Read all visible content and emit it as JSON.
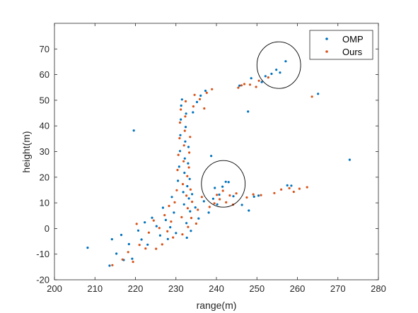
{
  "chart_data": {
    "type": "scatter",
    "xlabel": "range(m)",
    "ylabel": "height(m)",
    "xlim": [
      200,
      280
    ],
    "ylim": [
      -20,
      80
    ],
    "xticks": [
      "200",
      "210",
      "220",
      "230",
      "240",
      "250",
      "260",
      "270",
      "280"
    ],
    "yticks": [
      "-20",
      "-10",
      "0",
      "10",
      "20",
      "30",
      "40",
      "50",
      "60",
      "70"
    ],
    "grid": false,
    "legend_position": "top-right",
    "series": [
      {
        "name": "OMP",
        "color": "#0072BD",
        "points": [
          [
            208.2,
            -7.5
          ],
          [
            213.6,
            -14.5
          ],
          [
            214.2,
            -4.2
          ],
          [
            215.3,
            -9.8
          ],
          [
            216.5,
            -2.5
          ],
          [
            217.1,
            -12.3
          ],
          [
            218.4,
            -6.1
          ],
          [
            219.2,
            -11.8
          ],
          [
            219.6,
            38.2
          ],
          [
            220.7,
            -0.8
          ],
          [
            221.5,
            -4.3
          ],
          [
            222.3,
            2.4
          ],
          [
            223.0,
            -6.3
          ],
          [
            224.1,
            4.2
          ],
          [
            225.2,
            0.9
          ],
          [
            226.1,
            -2.7
          ],
          [
            226.8,
            8.1
          ],
          [
            227.5,
            3.3
          ],
          [
            228.0,
            -4.1
          ],
          [
            228.6,
            0.5
          ],
          [
            229.0,
            12.3
          ],
          [
            229.5,
            6.2
          ],
          [
            230.0,
            -1.8
          ],
          [
            230.5,
            18.6
          ],
          [
            230.8,
            24.1
          ],
          [
            231.0,
            30.2
          ],
          [
            231.1,
            36.4
          ],
          [
            231.2,
            42.5
          ],
          [
            231.3,
            47.9
          ],
          [
            231.5,
            50.3
          ],
          [
            231.8,
            14.2
          ],
          [
            232.0,
            9.4
          ],
          [
            232.1,
            21.7
          ],
          [
            232.2,
            27.3
          ],
          [
            232.3,
            33.9
          ],
          [
            232.4,
            39.6
          ],
          [
            232.5,
            44.8
          ],
          [
            232.6,
            2.1
          ],
          [
            232.7,
            -3.6
          ],
          [
            232.8,
            16.5
          ],
          [
            233.0,
            25.4
          ],
          [
            233.1,
            31.8
          ],
          [
            233.2,
            11.7
          ],
          [
            233.4,
            19.3
          ],
          [
            233.5,
            6.7
          ],
          [
            233.7,
            -0.9
          ],
          [
            234.0,
            13.4
          ],
          [
            234.2,
            45.3
          ],
          [
            234.8,
            8.2
          ],
          [
            235.2,
            49.3
          ],
          [
            235.6,
            3.9
          ],
          [
            236.1,
            51.8
          ],
          [
            236.9,
            10.6
          ],
          [
            237.3,
            53.7
          ],
          [
            238.1,
            6.2
          ],
          [
            238.7,
            28.3
          ],
          [
            239.2,
            11.6
          ],
          [
            239.6,
            15.8
          ],
          [
            240.2,
            9.4
          ],
          [
            240.7,
            13.2
          ],
          [
            241.5,
            16.3
          ],
          [
            242.3,
            18.2
          ],
          [
            243.0,
            18.1
          ],
          [
            244.2,
            12.6
          ],
          [
            245.7,
            55.7
          ],
          [
            246.3,
            9.2
          ],
          [
            247.8,
            45.6
          ],
          [
            248.0,
            7.0
          ],
          [
            248.6,
            58.6
          ],
          [
            249.3,
            12.4
          ],
          [
            250.4,
            12.8
          ],
          [
            251.2,
            57.1
          ],
          [
            252.1,
            59.4
          ],
          [
            253.6,
            60.3
          ],
          [
            254.8,
            61.9
          ],
          [
            255.7,
            60.8
          ],
          [
            257.1,
            65.2
          ],
          [
            257.5,
            16.8
          ],
          [
            258.5,
            16.7
          ],
          [
            265.1,
            52.5
          ],
          [
            272.9,
            26.8
          ]
        ]
      },
      {
        "name": "Ours",
        "color": "#D95319",
        "points": [
          [
            214.3,
            -14.3
          ],
          [
            216.8,
            -12.1
          ],
          [
            218.2,
            -9.2
          ],
          [
            219.4,
            -13.0
          ],
          [
            220.3,
            1.8
          ],
          [
            221.0,
            -6.4
          ],
          [
            222.5,
            -7.8
          ],
          [
            223.3,
            -1.6
          ],
          [
            224.5,
            3.1
          ],
          [
            225.1,
            -7.9
          ],
          [
            225.9,
            0.2
          ],
          [
            226.6,
            -6.2
          ],
          [
            227.2,
            5.2
          ],
          [
            227.9,
            -1.1
          ],
          [
            228.3,
            8.8
          ],
          [
            228.8,
            2.7
          ],
          [
            229.3,
            -3.5
          ],
          [
            229.7,
            10.2
          ],
          [
            230.2,
            14.9
          ],
          [
            230.4,
            22.8
          ],
          [
            230.6,
            28.7
          ],
          [
            230.9,
            35.2
          ],
          [
            231.0,
            41.3
          ],
          [
            231.2,
            46.4
          ],
          [
            231.4,
            4.4
          ],
          [
            231.6,
            -2.3
          ],
          [
            231.7,
            17.3
          ],
          [
            231.9,
            26.2
          ],
          [
            232.0,
            32.4
          ],
          [
            232.2,
            38.1
          ],
          [
            232.3,
            43.7
          ],
          [
            232.4,
            49.6
          ],
          [
            232.6,
            12.8
          ],
          [
            232.8,
            20.4
          ],
          [
            232.9,
            7.9
          ],
          [
            233.0,
            0.6
          ],
          [
            233.2,
            23.8
          ],
          [
            233.3,
            29.6
          ],
          [
            233.5,
            35.7
          ],
          [
            233.6,
            15.2
          ],
          [
            233.8,
            4.1
          ],
          [
            234.0,
            10.4
          ],
          [
            234.3,
            47.6
          ],
          [
            234.6,
            52.1
          ],
          [
            235.0,
            1.9
          ],
          [
            235.4,
            7.3
          ],
          [
            235.9,
            50.4
          ],
          [
            236.4,
            12.3
          ],
          [
            237.0,
            46.8
          ],
          [
            237.6,
            52.9
          ],
          [
            238.3,
            8.4
          ],
          [
            238.9,
            54.3
          ],
          [
            239.5,
            9.8
          ],
          [
            240.1,
            13.1
          ],
          [
            240.8,
            11.4
          ],
          [
            241.6,
            14.7
          ],
          [
            242.4,
            10.2
          ],
          [
            243.3,
            12.9
          ],
          [
            244.1,
            9.3
          ],
          [
            244.9,
            13.7
          ],
          [
            245.4,
            54.9
          ],
          [
            246.2,
            55.8
          ],
          [
            246.9,
            56.3
          ],
          [
            247.5,
            12.1
          ],
          [
            248.3,
            56.1
          ],
          [
            249.1,
            13.3
          ],
          [
            249.8,
            55.2
          ],
          [
            250.5,
            57.6
          ],
          [
            251.0,
            13.0
          ],
          [
            252.8,
            58.9
          ],
          [
            254.3,
            13.8
          ],
          [
            256.0,
            15.2
          ],
          [
            258.0,
            15.7
          ],
          [
            259.1,
            14.3
          ],
          [
            260.5,
            15.5
          ],
          [
            262.4,
            16.1
          ],
          [
            263.6,
            51.4
          ]
        ]
      }
    ],
    "annotations": [
      {
        "shape": "circle",
        "center": [
          255.4,
          63.7
        ],
        "radius_x": 5.4,
        "radius_y": 9.1
      },
      {
        "shape": "circle",
        "center": [
          241.7,
          17.4
        ],
        "radius_x": 5.4,
        "radius_y": 9.1
      }
    ]
  }
}
